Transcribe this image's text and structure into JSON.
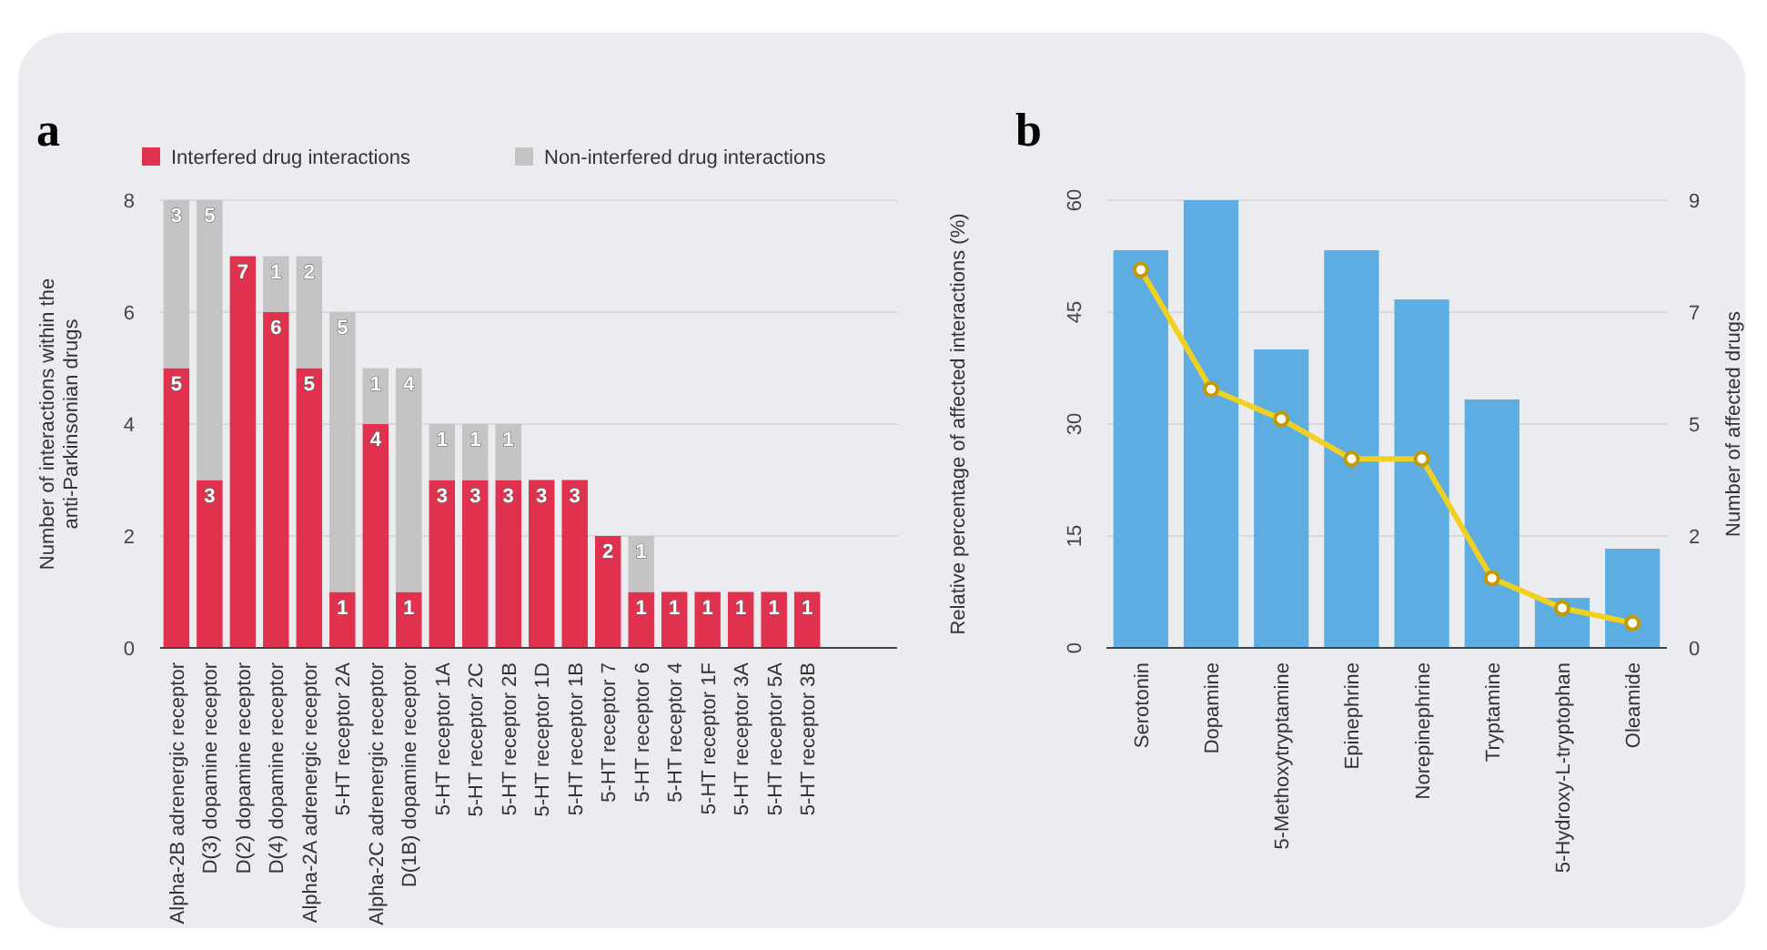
{
  "chart_data": [
    {
      "type": "bar",
      "title": "a",
      "ylabel": "Number of interactions within the anti-Parkinsonian drugs",
      "stacked": true,
      "data_labels": true,
      "legend": "top",
      "grid": "y",
      "categories": [
        "Alpha-2B adrenergic receptor",
        "D(3) dopamine receptor",
        "D(2) dopamine receptor",
        "D(4) dopamine receptor",
        "Alpha-2A adrenergic receptor",
        "5-HT receptor 2A",
        "Alpha-2C adrenergic receptor",
        "D(1B) dopamine receptor",
        "5-HT receptor 1A",
        "5-HT receptor 2C",
        "5-HT receptor 2B",
        "5-HT receptor 1D",
        "5-HT receptor 1B",
        "5-HT receptor 7",
        "5-HT receptor 6",
        "5-HT receptor 4",
        "5-HT receptor 1F",
        "5-HT receptor 3A",
        "5-HT receptor 5A",
        "5-HT receptor 3B"
      ],
      "series": [
        {
          "name": "Interfered drug interactions",
          "color": "#e0314f",
          "values": [
            5,
            3,
            7,
            6,
            5,
            1,
            4,
            1,
            3,
            3,
            3,
            3,
            3,
            2,
            1,
            1,
            1,
            1,
            1,
            1
          ]
        },
        {
          "name": "Non-interfered drug interactions",
          "color": "#c4c4c4",
          "values": [
            3,
            5,
            null,
            1,
            2,
            5,
            1,
            4,
            1,
            1,
            1,
            null,
            null,
            null,
            1,
            null,
            null,
            null,
            null,
            null
          ]
        }
      ],
      "ylim": [
        0,
        8
      ],
      "yticks": [
        0,
        2,
        4,
        6,
        8
      ]
    },
    {
      "type": "bar",
      "title": "b",
      "ylabel": "Relative percentage of affected interactions (%)",
      "y2label": "Number of affected drugs",
      "grid": "y",
      "categories": [
        "Serotonin",
        "Dopamine",
        "5-Methoxytryptamine",
        "Epinephrine",
        "Norepinephrine",
        "Tryptamine",
        "5-Hydroxy-L-tryptophan",
        "Oleamide"
      ],
      "series": [
        {
          "color": "#5dade2",
          "values": [
            53.3,
            60,
            40,
            53.3,
            46.7,
            33.3,
            6.7,
            13.3
          ]
        },
        {
          "type": "line",
          "axis": "y2",
          "color": "#f0d020",
          "marker": "circle",
          "values": [
            7.6,
            5.2,
            4.6,
            3.8,
            3.8,
            1.4,
            0.8,
            0.5
          ]
        }
      ],
      "ylim": [
        0,
        60
      ],
      "yticks": [
        0,
        15,
        30,
        45,
        60
      ],
      "y2lim": [
        0,
        9
      ],
      "y2ticks": [
        0,
        {
          "value": 2.25,
          "label": "2"
        },
        {
          "value": 4.5,
          "label": "5"
        },
        {
          "value": 6.75,
          "label": "7"
        },
        9
      ]
    }
  ]
}
